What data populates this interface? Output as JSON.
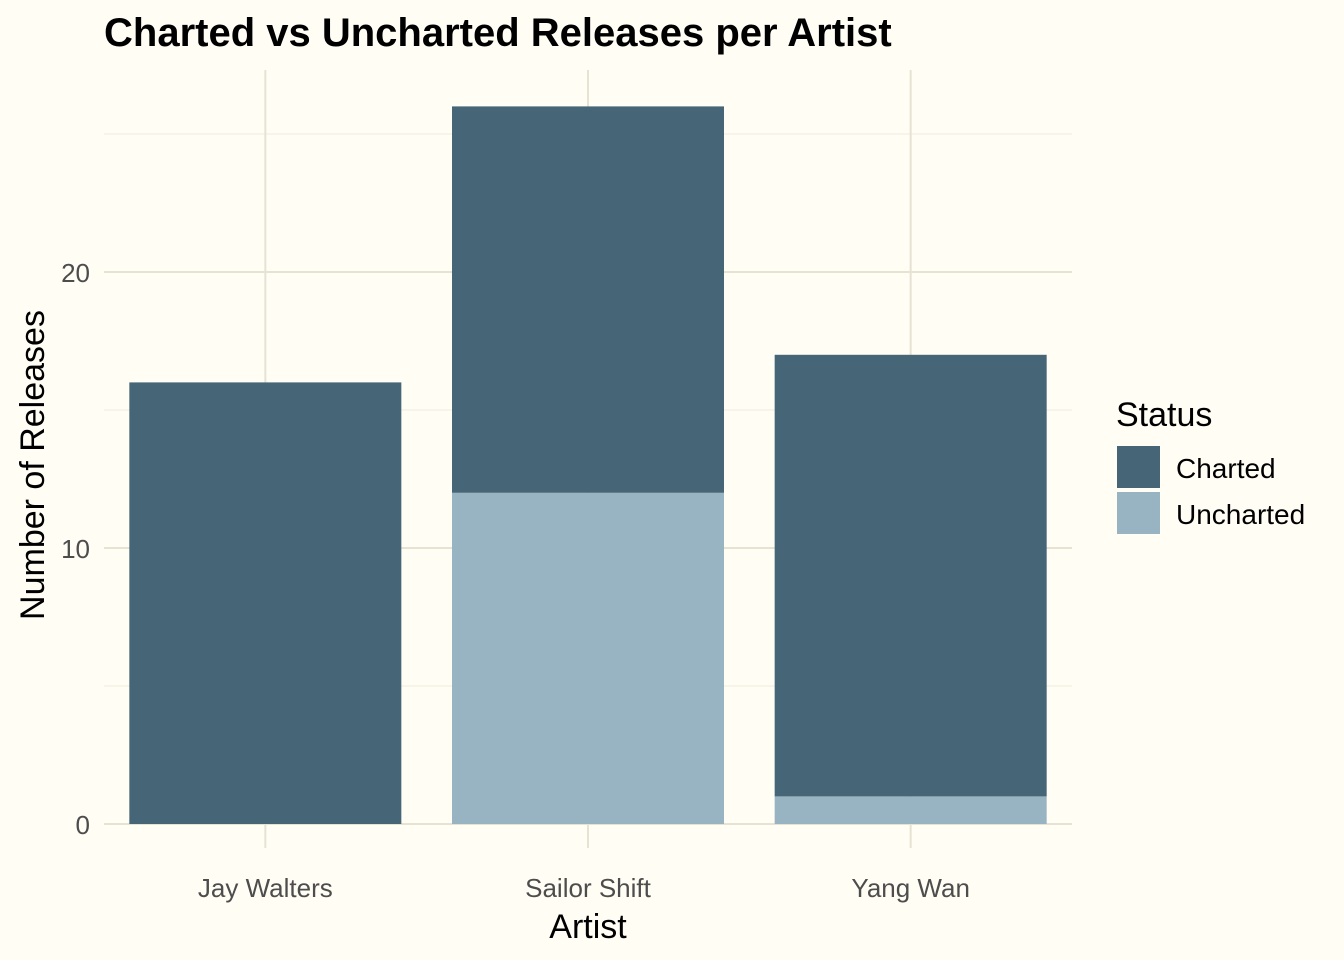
{
  "chart_data": {
    "type": "bar",
    "stacked": true,
    "title": "Charted vs Uncharted Releases per Artist",
    "xlabel": "Artist",
    "ylabel": "Number of Releases",
    "categories": [
      "Jay Walters",
      "Sailor Shift",
      "Yang Wan"
    ],
    "series": [
      {
        "name": "Charted",
        "values": [
          16,
          14,
          16
        ],
        "color": "#466577"
      },
      {
        "name": "Uncharted",
        "values": [
          0,
          12,
          1
        ],
        "color": "#98b3c2"
      }
    ],
    "ylim": [
      0,
      27
    ],
    "y_ticks": [
      0,
      10,
      20
    ],
    "grid": true,
    "legend": {
      "title": "Status",
      "position": "right"
    }
  }
}
